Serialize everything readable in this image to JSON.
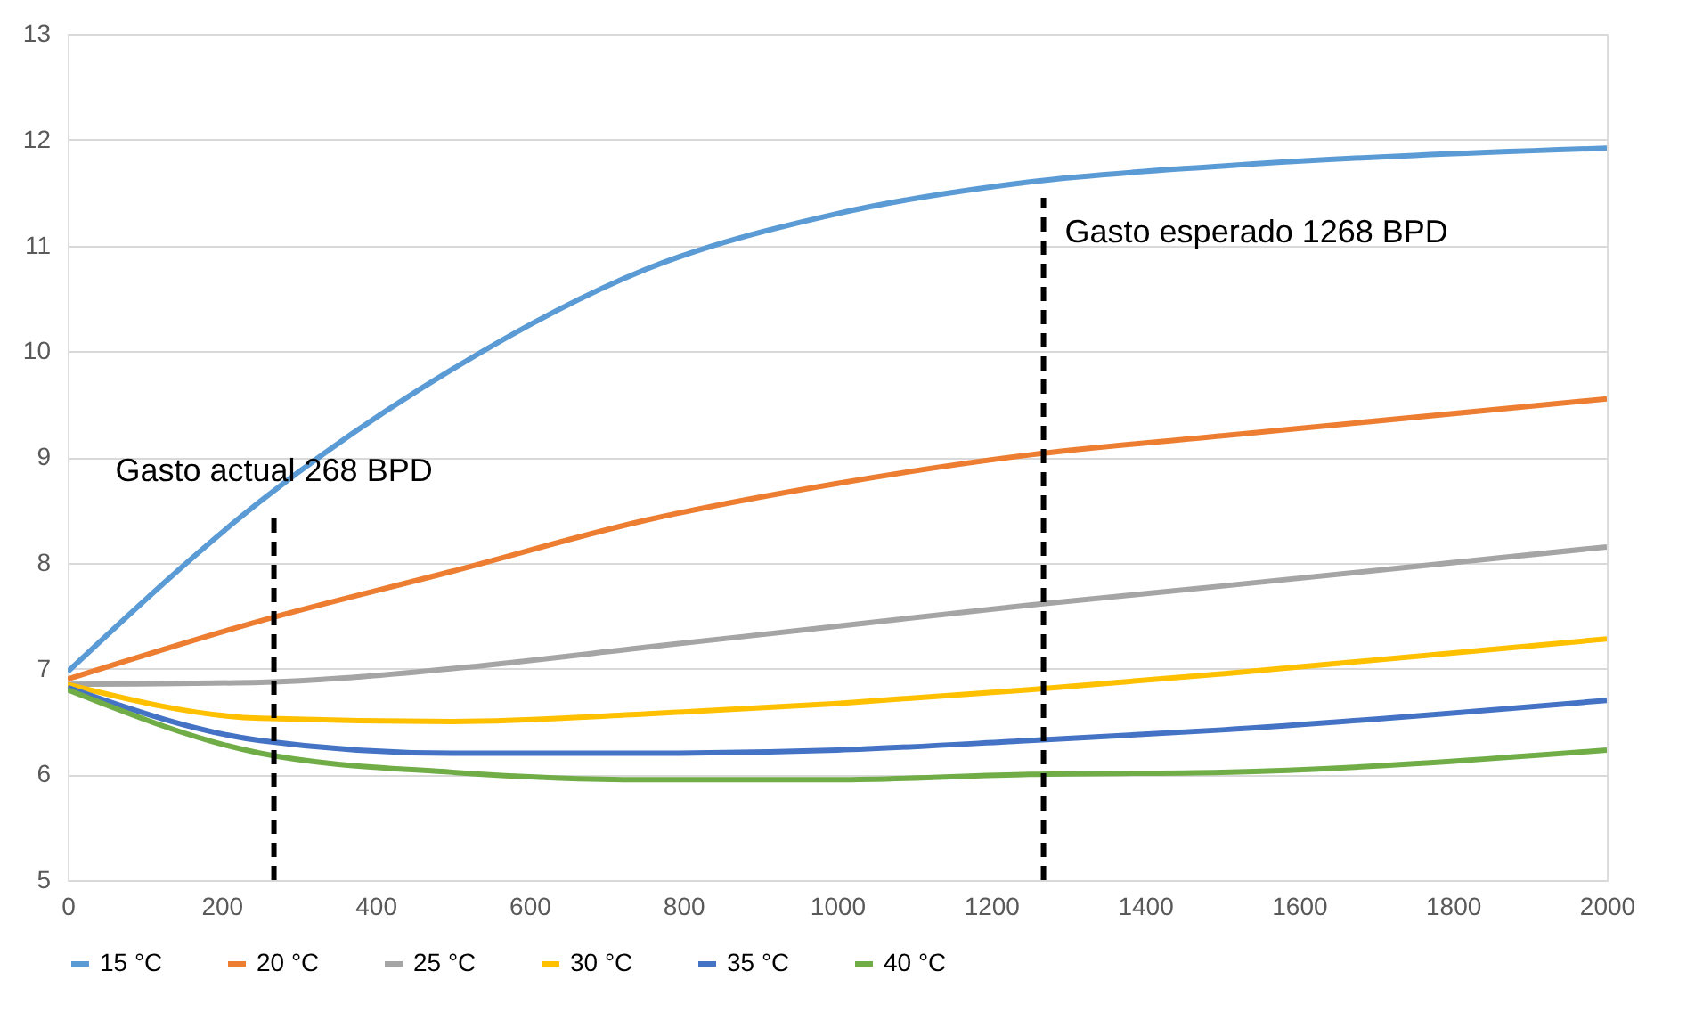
{
  "chart_data": {
    "type": "line",
    "x": [
      0,
      250,
      500,
      750,
      1000,
      1250,
      1500,
      2000
    ],
    "series": [
      {
        "name": "15 °C",
        "color": "#5b9bd5",
        "values": [
          6.97,
          8.58,
          9.83,
          10.77,
          11.3,
          11.6,
          11.75,
          11.92
        ]
      },
      {
        "name": "20 °C",
        "color": "#ed7d31",
        "values": [
          6.9,
          7.45,
          7.92,
          8.4,
          8.75,
          9.02,
          9.2,
          9.55
        ]
      },
      {
        "name": "25 °C",
        "color": "#a5a5a5",
        "values": [
          6.85,
          6.87,
          7.0,
          7.2,
          7.4,
          7.6,
          7.78,
          8.15
        ]
      },
      {
        "name": "30 °C",
        "color": "#ffc000",
        "values": [
          6.85,
          6.53,
          6.5,
          6.57,
          6.67,
          6.8,
          6.95,
          7.28
        ]
      },
      {
        "name": "35 °C",
        "color": "#4472c4",
        "values": [
          6.82,
          6.32,
          6.2,
          6.2,
          6.23,
          6.32,
          6.42,
          6.7
        ]
      },
      {
        "name": "40 °C",
        "color": "#70ad47",
        "values": [
          6.8,
          6.2,
          6.02,
          5.95,
          5.95,
          6.0,
          6.02,
          6.23
        ]
      }
    ],
    "xlim": [
      0,
      2000
    ],
    "xticks": [
      0,
      200,
      400,
      600,
      800,
      1000,
      1200,
      1400,
      1600,
      1800,
      2000
    ],
    "ylim": [
      5,
      13
    ],
    "yticks": [
      5,
      6,
      7,
      8,
      9,
      10,
      11,
      12,
      13
    ],
    "ref_lines": [
      {
        "axis": "x",
        "value": 268,
        "label": "Gasto actual 268 BPD",
        "color": "#000000",
        "line_style": "dashed"
      },
      {
        "axis": "x",
        "value": 1268,
        "label": "Gasto esperado 1268 BPD",
        "color": "#000000",
        "line_style": "dashed"
      }
    ],
    "grid": "y",
    "legend": "bottom",
    "marker": "none",
    "line_style": "solid"
  }
}
